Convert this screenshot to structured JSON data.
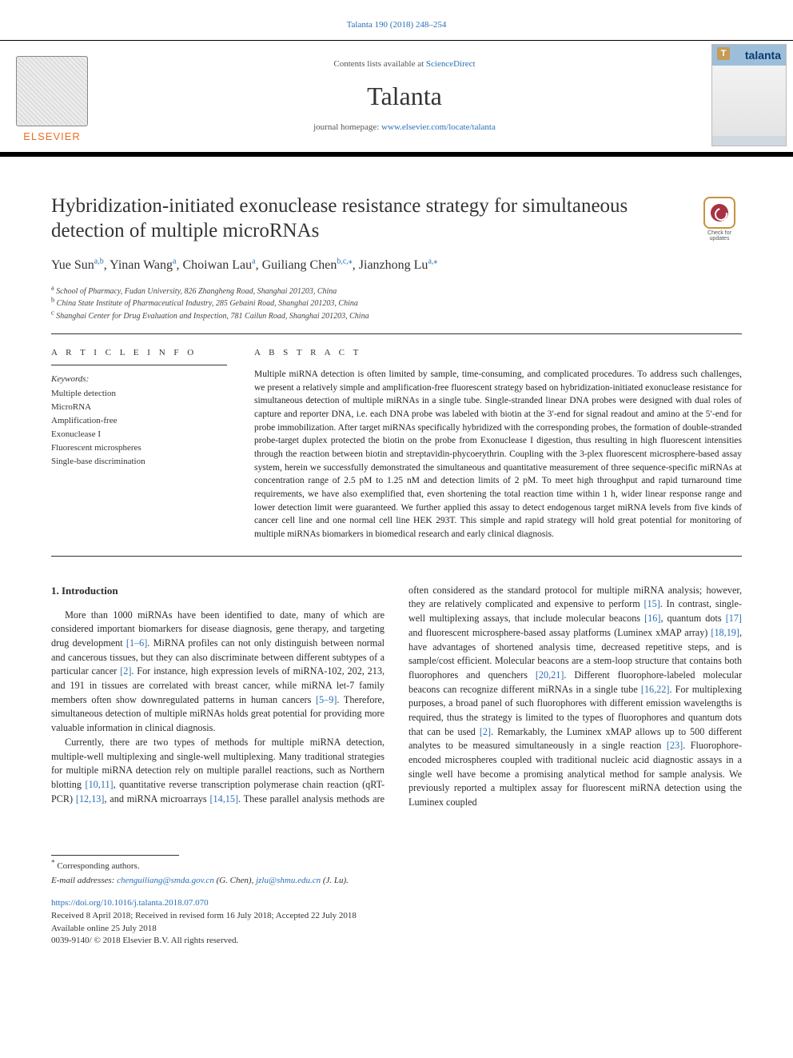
{
  "header": {
    "citation": "Talanta 190 (2018) 248–254",
    "contents_prefix": "Contents lists available at ",
    "contents_link": "ScienceDirect",
    "journal": "Talanta",
    "homepage_prefix": "journal homepage: ",
    "homepage_url": "www.elsevier.com/locate/talanta",
    "publisher_word": "ELSEVIER",
    "cover_brand": "talanta",
    "colors": {
      "link": "#2b6fb5",
      "elsevier_orange": "#f26b21",
      "rule": "#000000",
      "cover_band": "#9dbedb",
      "cover_text": "#0a3b6d"
    }
  },
  "check_updates": {
    "line1": "Check for",
    "line2": "updates"
  },
  "article": {
    "title": "Hybridization-initiated exonuclease resistance strategy for simultaneous detection of multiple microRNAs",
    "authors_html": "Yue Sun<sup>a,b</sup>, Yinan Wang<sup>a</sup>, Choiwan Lau<sup>a</sup>, Guiliang Chen<sup>b,c,*</sup>, Jianzhong Lu<sup>a,*</sup>",
    "authors": [
      {
        "name": "Yue Sun",
        "marks": "a,b"
      },
      {
        "name": "Yinan Wang",
        "marks": "a"
      },
      {
        "name": "Choiwan Lau",
        "marks": "a"
      },
      {
        "name": "Guiliang Chen",
        "marks": "b,c,*"
      },
      {
        "name": "Jianzhong Lu",
        "marks": "a,*"
      }
    ],
    "affiliations": [
      {
        "key": "a",
        "text": "School of Pharmacy, Fudan University, 826 Zhangheng Road, Shanghai 201203, China"
      },
      {
        "key": "b",
        "text": "China State Institute of Pharmaceutical Industry, 285 Gebaini Road, Shanghai 201203, China"
      },
      {
        "key": "c",
        "text": "Shanghai Center for Drug Evaluation and Inspection, 781 Cailun Road, Shanghai 201203, China"
      }
    ]
  },
  "info": {
    "heading": "A R T I C L E  I N F O",
    "keywords_label": "Keywords:",
    "keywords": [
      "Multiple detection",
      "MicroRNA",
      "Amplification-free",
      "Exonuclease I",
      "Fluorescent microspheres",
      "Single-base discrimination"
    ]
  },
  "abstract": {
    "heading": "A B S T R A C T",
    "text": "Multiple miRNA detection is often limited by sample, time-consuming, and complicated procedures. To address such challenges, we present a relatively simple and amplification-free fluorescent strategy based on hybridization-initiated exonuclease resistance for simultaneous detection of multiple miRNAs in a single tube. Single-stranded linear DNA probes were designed with dual roles of capture and reporter DNA, i.e. each DNA probe was labeled with biotin at the 3′-end for signal readout and amino at the 5′-end for probe immobilization. After target miRNAs specifically hybridized with the corresponding probes, the formation of double-stranded probe-target duplex protected the biotin on the probe from Exonuclease I digestion, thus resulting in high fluorescent intensities through the reaction between biotin and streptavidin-phycoerythrin. Coupling with the 3-plex fluorescent microsphere-based assay system, herein we successfully demonstrated the simultaneous and quantitative measurement of three sequence-specific miRNAs at concentration range of 2.5 pM to 1.25 nM and detection limits of 2 pM. To meet high throughput and rapid turnaround time requirements, we have also exemplified that, even shortening the total reaction time within 1 h, wider linear response range and lower detection limit were guaranteed. We further applied this assay to detect endogenous target miRNA levels from five kinds of cancer cell line and one normal cell line HEK 293T. This simple and rapid strategy will hold great potential for monitoring of multiple miRNAs biomarkers in biomedical research and early clinical diagnosis."
  },
  "body": {
    "section_heading": "1. Introduction",
    "p1_a": "More than 1000 miRNAs have been identified to date, many of which are considered important biomarkers for disease diagnosis, gene therapy, and targeting drug development ",
    "r1": "[1–6]",
    "p1_b": ". MiRNA profiles can not only distinguish between normal and cancerous tissues, but they can also discriminate between different subtypes of a particular cancer ",
    "r2": "[2]",
    "p1_c": ". For instance, high expression levels of miRNA-102, 202, 213, and 191 in tissues are correlated with breast cancer, while miRNA let-7 family members often show downregulated patterns in human cancers ",
    "r3": "[5–9]",
    "p1_d": ". Therefore, simultaneous detection of multiple miRNAs holds great potential for providing more valuable information in clinical diagnosis.",
    "p2_a": "Currently, there are two types of methods for multiple miRNA detection, multiple-well multiplexing and single-well multiplexing. Many traditional strategies for multiple miRNA detection rely on multiple parallel reactions, such as Northern blotting ",
    "r4": "[10,11]",
    "p2_b": ", quantitative reverse transcription polymerase chain reaction (qRT-PCR) ",
    "r5": "[12,13]",
    "p2_c": ", and miRNA microarrays ",
    "r6": "[14,15]",
    "p2_d": ". These parallel analysis methods are often considered as the standard protocol for multiple miRNA analysis; however, they are relatively complicated and expensive to perform ",
    "r7": "[15]",
    "p2_e": ". In contrast, single-well multiplexing assays, that include molecular beacons ",
    "r8": "[16]",
    "p2_f": ", quantum dots ",
    "r9": "[17]",
    "p2_g": " and fluorescent microsphere-based assay platforms (Luminex xMAP array) ",
    "r10": "[18,19]",
    "p2_h": ", have advantages of shortened analysis time, decreased repetitive steps, and is sample/cost efficient. Molecular beacons are a stem-loop structure that contains both fluorophores and quenchers ",
    "r11": "[20,21]",
    "p2_i": ". Different fluorophore-labeled molecular beacons can recognize different miRNAs in a single tube ",
    "r12": "[16,22]",
    "p2_j": ". For multiplexing purposes, a broad panel of such fluorophores with different emission wavelengths is required, thus the strategy is limited to the types of fluorophores and quantum dots that can be used ",
    "r13": "[2]",
    "p2_k": ". Remarkably, the Luminex xMAP allows up to 500 different analytes to be measured simultaneously in a single reaction ",
    "r14": "[23]",
    "p2_l": ". Fluorophore-encoded microspheres coupled with traditional nucleic acid diagnostic assays in a single well have become a promising analytical method for sample analysis. We previously reported a multiplex assay for fluorescent miRNA detection using the Luminex coupled"
  },
  "footer": {
    "corr_marker": "*",
    "corr_text": "Corresponding authors.",
    "email_label": "E-mail addresses: ",
    "email1": "chenguiliang@smda.gov.cn",
    "email1_who": " (G. Chen), ",
    "email2": "jzlu@shmu.edu.cn",
    "email2_who": " (J. Lu).",
    "doi": "https://doi.org/10.1016/j.talanta.2018.07.070",
    "dates": "Received 8 April 2018; Received in revised form 16 July 2018; Accepted 22 July 2018",
    "available": "Available online 25 July 2018",
    "copyright": "0039-9140/ © 2018 Elsevier B.V. All rights reserved."
  }
}
